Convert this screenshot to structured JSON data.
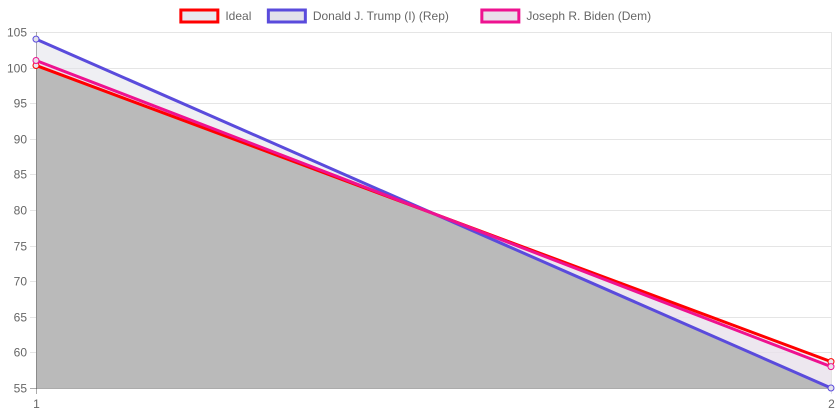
{
  "chart_data": {
    "type": "line",
    "title": "",
    "xlabel": "",
    "ylabel": "",
    "x": [
      1,
      2
    ],
    "x_tick_labels": [
      "1",
      "2"
    ],
    "ylim": [
      55,
      105
    ],
    "y_ticks": [
      55,
      60,
      65,
      70,
      75,
      80,
      85,
      90,
      95,
      100,
      105
    ],
    "grid": true,
    "legend_position": "top",
    "series": [
      {
        "name": "Ideal",
        "values": [
          100.3,
          58.7
        ],
        "color": "#ff0000",
        "fill": "#e8e8ee"
      },
      {
        "name": "Donald J. Trump (I) (Rep)",
        "values": [
          104,
          55
        ],
        "color": "#5a4bdc",
        "fill": "#e2e1ea"
      },
      {
        "name": "Joseph R. Biden (Dem)",
        "values": [
          101,
          58
        ],
        "color": "#ee1290",
        "fill": "#eadfea"
      }
    ],
    "filled_area_color": "#bababa"
  }
}
